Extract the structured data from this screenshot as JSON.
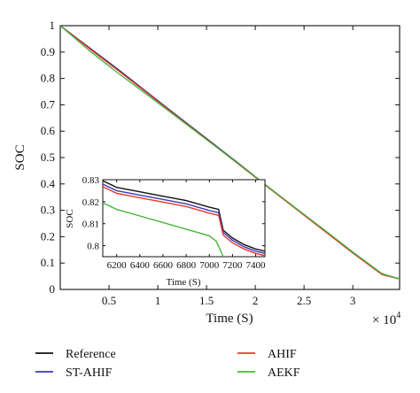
{
  "chart_data": {
    "main": {
      "type": "line",
      "xlabel": "Time (S)",
      "ylabel": "SOC",
      "x_multiplier_label": "× 10",
      "x_multiplier_exponent": "4",
      "xlim": [
        0,
        34800
      ],
      "ylim": [
        0,
        1
      ],
      "x_ticks": [
        5000,
        10000,
        15000,
        20000,
        25000,
        30000
      ],
      "x_tick_labels": [
        "0.5",
        "1",
        "1.5",
        "2",
        "2.5",
        "3"
      ],
      "y_ticks": [
        0,
        0.1,
        0.2,
        0.3,
        0.4,
        0.5,
        0.6,
        0.7,
        0.8,
        0.9,
        1
      ],
      "y_tick_labels": [
        "0",
        "0.1",
        "0.2",
        "0.3",
        "0.4",
        "0.5",
        "0.6",
        "0.7",
        "0.8",
        "0.9",
        "1"
      ],
      "grid": false,
      "series": [
        {
          "name": "Reference",
          "color": "#111111",
          "x": [
            0,
            3000,
            6000,
            9000,
            12000,
            15000,
            18000,
            21000,
            24000,
            27000,
            30000,
            33000,
            34800
          ],
          "y": [
            1.0,
            0.916,
            0.832,
            0.745,
            0.658,
            0.572,
            0.486,
            0.398,
            0.312,
            0.226,
            0.14,
            0.058,
            0.04
          ]
        },
        {
          "name": "ST-AHIF",
          "color": "#3a3ab8",
          "x": [
            0,
            3000,
            6000,
            9000,
            12000,
            15000,
            18000,
            21000,
            24000,
            27000,
            30000,
            33000,
            34800
          ],
          "y": [
            1.0,
            0.915,
            0.83,
            0.744,
            0.657,
            0.571,
            0.485,
            0.397,
            0.311,
            0.225,
            0.139,
            0.057,
            0.04
          ]
        },
        {
          "name": "AHIF",
          "color": "#e8372c",
          "x": [
            0,
            3000,
            6000,
            9000,
            12000,
            15000,
            18000,
            21000,
            24000,
            27000,
            30000,
            33000,
            34800
          ],
          "y": [
            1.0,
            0.913,
            0.828,
            0.742,
            0.655,
            0.569,
            0.483,
            0.396,
            0.31,
            0.224,
            0.138,
            0.056,
            0.04
          ]
        },
        {
          "name": "AEKF",
          "color": "#47b53a",
          "x": [
            0,
            3000,
            6000,
            9000,
            12000,
            15000,
            18000,
            21000,
            24000,
            27000,
            30000,
            33000,
            34800
          ],
          "y": [
            1.0,
            0.905,
            0.818,
            0.736,
            0.652,
            0.568,
            0.484,
            0.398,
            0.313,
            0.228,
            0.142,
            0.06,
            0.04
          ]
        }
      ]
    },
    "inset": {
      "type": "line",
      "xlabel": "Time (S)",
      "ylabel": "SOC",
      "xlim": [
        6080,
        7480
      ],
      "ylim": [
        0.795,
        0.83
      ],
      "x_ticks": [
        6200,
        6400,
        6600,
        6800,
        7000,
        7200,
        7400
      ],
      "x_tick_labels": [
        "6200",
        "6400",
        "6600",
        "6800",
        "7000",
        "7200",
        "7400"
      ],
      "y_ticks": [
        0.8,
        0.81,
        0.82,
        0.83
      ],
      "y_tick_labels": [
        "0.8",
        "0.81",
        "0.82",
        "0.83"
      ],
      "series": [
        {
          "name": "Reference",
          "color": "#111111",
          "x": [
            6080,
            6200,
            6400,
            6600,
            6800,
            7000,
            7080,
            7120,
            7200,
            7300,
            7400,
            7480
          ],
          "y": [
            0.8295,
            0.8265,
            0.8245,
            0.8225,
            0.8205,
            0.8175,
            0.8165,
            0.807,
            0.8035,
            0.8005,
            0.7985,
            0.7975
          ]
        },
        {
          "name": "ST-AHIF",
          "color": "#3a3ab8",
          "x": [
            6080,
            6200,
            6400,
            6600,
            6800,
            7000,
            7080,
            7120,
            7200,
            7300,
            7400,
            7480
          ],
          "y": [
            0.828,
            0.825,
            0.823,
            0.821,
            0.819,
            0.816,
            0.815,
            0.806,
            0.8025,
            0.7995,
            0.7975,
            0.7965
          ]
        },
        {
          "name": "AHIF",
          "color": "#e8372c",
          "x": [
            6080,
            6200,
            6400,
            6600,
            6800,
            7000,
            7080,
            7120,
            7200,
            7300,
            7400,
            7480
          ],
          "y": [
            0.8268,
            0.8238,
            0.8218,
            0.8198,
            0.8178,
            0.8148,
            0.8138,
            0.8048,
            0.8013,
            0.7985,
            0.7965,
            0.7955
          ]
        },
        {
          "name": "AEKF",
          "color": "#47b53a",
          "x": [
            6080,
            6200,
            6400,
            6600,
            6800,
            7000,
            7060,
            7120
          ],
          "y": [
            0.8195,
            0.8165,
            0.8135,
            0.8105,
            0.8075,
            0.8045,
            0.802,
            0.795
          ]
        }
      ]
    },
    "legend": {
      "placement": "bottom",
      "entries": [
        {
          "label": "Reference",
          "color": "#111111"
        },
        {
          "label": "AHIF",
          "color": "#e8372c"
        },
        {
          "label": "ST-AHIF",
          "color": "#3a3ab8"
        },
        {
          "label": "AEKF",
          "color": "#47b53a"
        }
      ]
    }
  }
}
